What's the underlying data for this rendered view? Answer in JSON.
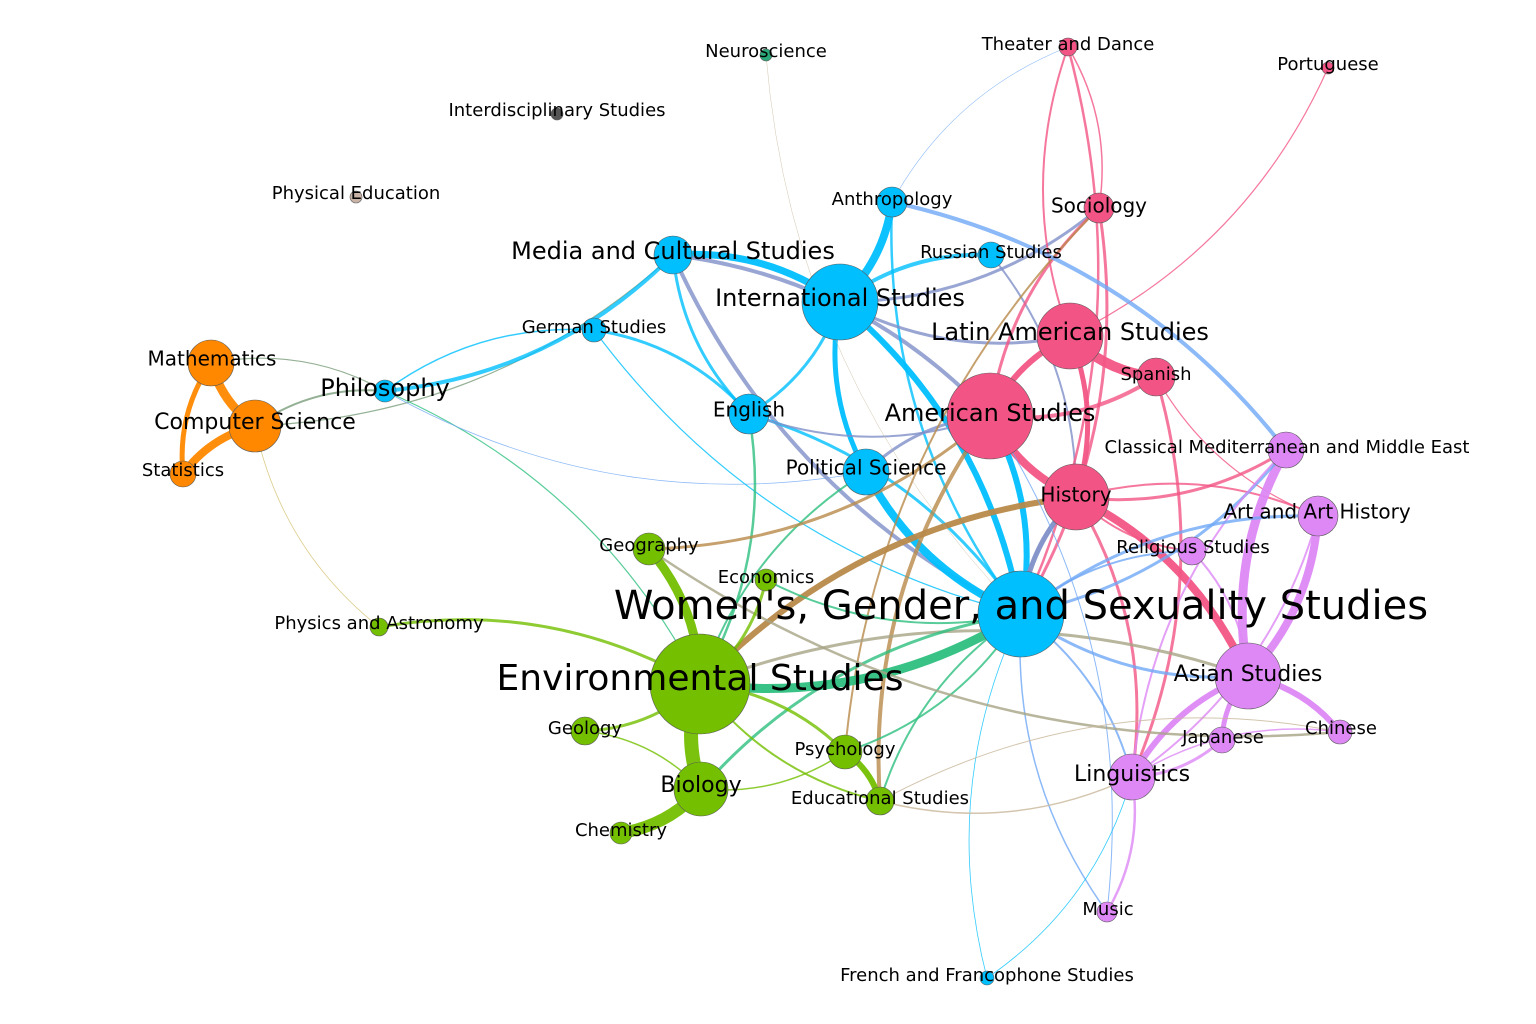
{
  "colors": {
    "blue": "#00bfff",
    "pink": "#f25585",
    "violet": "#dd88f5",
    "green": "#73bf00",
    "orange": "#ff8800",
    "teal": "#2aa87a",
    "gray": "#555555",
    "taupe": "#c9b3a6",
    "edge_steel": "#8090c8",
    "edge_cornflower": "#6fa8f5",
    "edge_bronze": "#b8894a",
    "edge_khaki": "#a8a486",
    "edge_sea": "#2dbf7e",
    "edge_sage": "#7a9e7a",
    "edge_mustard": "#d4c070",
    "edge_tan": "#c8b79a"
  },
  "nodes": [
    {
      "id": "wgss",
      "label": "Women's, Gender, and Sexuality Studies",
      "color": "blue"
    },
    {
      "id": "env",
      "label": "Environmental Studies",
      "color": "green"
    },
    {
      "id": "amst",
      "label": "American Studies",
      "color": "pink"
    },
    {
      "id": "intl",
      "label": "International Studies",
      "color": "blue"
    },
    {
      "id": "latam",
      "label": "Latin American Studies",
      "color": "pink"
    },
    {
      "id": "hist",
      "label": "History",
      "color": "pink"
    },
    {
      "id": "media",
      "label": "Media and Cultural Studies",
      "color": "blue"
    },
    {
      "id": "asian",
      "label": "Asian Studies",
      "color": "violet"
    },
    {
      "id": "polsci",
      "label": "Political Science",
      "color": "blue"
    },
    {
      "id": "english",
      "label": "English",
      "color": "blue"
    },
    {
      "id": "cs",
      "label": "Computer Science",
      "color": "orange"
    },
    {
      "id": "math",
      "label": "Mathematics",
      "color": "orange"
    },
    {
      "id": "stats",
      "label": "Statistics",
      "color": "orange"
    },
    {
      "id": "philo",
      "label": "Philosophy",
      "color": "blue"
    },
    {
      "id": "german",
      "label": "German Studies",
      "color": "blue"
    },
    {
      "id": "anthro",
      "label": "Anthropology",
      "color": "blue"
    },
    {
      "id": "russian",
      "label": "Russian Studies",
      "color": "blue"
    },
    {
      "id": "socio",
      "label": "Sociology",
      "color": "pink"
    },
    {
      "id": "theater",
      "label": "Theater and Dance",
      "color": "pink"
    },
    {
      "id": "port",
      "label": "Portuguese",
      "color": "pink"
    },
    {
      "id": "spanish",
      "label": "Spanish",
      "color": "pink"
    },
    {
      "id": "classical",
      "label": "Classical Mediterranean and Middle East",
      "color": "violet"
    },
    {
      "id": "arth",
      "label": "Art and Art History",
      "color": "violet"
    },
    {
      "id": "relig",
      "label": "Religious Studies",
      "color": "violet"
    },
    {
      "id": "ling",
      "label": "Linguistics",
      "color": "violet"
    },
    {
      "id": "japan",
      "label": "Japanese",
      "color": "violet"
    },
    {
      "id": "chinese",
      "label": "Chinese",
      "color": "violet"
    },
    {
      "id": "music",
      "label": "Music",
      "color": "violet"
    },
    {
      "id": "french",
      "label": "French and Francophone Studies",
      "color": "blue"
    },
    {
      "id": "geog",
      "label": "Geography",
      "color": "green"
    },
    {
      "id": "econ",
      "label": "Economics",
      "color": "green"
    },
    {
      "id": "physics",
      "label": "Physics and Astronomy",
      "color": "green"
    },
    {
      "id": "geology",
      "label": "Geology",
      "color": "green"
    },
    {
      "id": "bio",
      "label": "Biology",
      "color": "green"
    },
    {
      "id": "chem",
      "label": "Chemistry",
      "color": "green"
    },
    {
      "id": "psych",
      "label": "Psychology",
      "color": "green"
    },
    {
      "id": "edu",
      "label": "Educational Studies",
      "color": "green"
    },
    {
      "id": "neuro",
      "label": "Neuroscience",
      "color": "teal"
    },
    {
      "id": "interd",
      "label": "Interdisciplinary Studies",
      "color": "gray"
    },
    {
      "id": "pe",
      "label": "Physical Education",
      "color": "taupe"
    }
  ],
  "edges": [
    {
      "source": "math",
      "target": "cs",
      "weight": 9,
      "color": "orange"
    },
    {
      "source": "stats",
      "target": "cs",
      "weight": 8,
      "color": "orange"
    },
    {
      "source": "math",
      "target": "stats",
      "weight": 5,
      "color": "orange"
    },
    {
      "source": "cs",
      "target": "philo",
      "weight": 2,
      "color": "edge_sage"
    },
    {
      "source": "cs",
      "target": "media",
      "weight": 1.2,
      "color": "edge_sage"
    },
    {
      "source": "math",
      "target": "philo",
      "weight": 1.2,
      "color": "edge_sage"
    },
    {
      "source": "cs",
      "target": "physics",
      "weight": 0.8,
      "color": "edge_mustard"
    },
    {
      "source": "philo",
      "target": "german",
      "weight": 1.5,
      "color": "blue"
    },
    {
      "source": "philo",
      "target": "media",
      "weight": 4,
      "color": "blue"
    },
    {
      "source": "philo",
      "target": "env",
      "weight": 1.2,
      "color": "edge_sea"
    },
    {
      "source": "philo",
      "target": "polsci",
      "weight": 0.8,
      "color": "edge_cornflower"
    },
    {
      "source": "media",
      "target": "intl",
      "weight": 7,
      "color": "blue"
    },
    {
      "source": "media",
      "target": "english",
      "weight": 3,
      "color": "blue"
    },
    {
      "source": "media",
      "target": "amst",
      "weight": 4,
      "color": "edge_steel"
    },
    {
      "source": "media",
      "target": "wgss",
      "weight": 4,
      "color": "edge_steel"
    },
    {
      "source": "german",
      "target": "english",
      "weight": 3,
      "color": "blue"
    },
    {
      "source": "german",
      "target": "wgss",
      "weight": 1.2,
      "color": "blue"
    },
    {
      "source": "anthro",
      "target": "intl",
      "weight": 8,
      "color": "blue"
    },
    {
      "source": "anthro",
      "target": "wgss",
      "weight": 2.5,
      "color": "blue"
    },
    {
      "source": "anthro",
      "target": "theater",
      "weight": 0.6,
      "color": "edge_cornflower"
    },
    {
      "source": "russian",
      "target": "intl",
      "weight": 4,
      "color": "blue"
    },
    {
      "source": "russian",
      "target": "hist",
      "weight": 2,
      "color": "edge_steel"
    },
    {
      "source": "intl",
      "target": "polsci",
      "weight": 5,
      "color": "blue"
    },
    {
      "source": "intl",
      "target": "wgss",
      "weight": 6,
      "color": "blue"
    },
    {
      "source": "intl",
      "target": "latam",
      "weight": 3,
      "color": "edge_steel"
    },
    {
      "source": "intl",
      "target": "english",
      "weight": 3,
      "color": "blue"
    },
    {
      "source": "intl",
      "target": "socio",
      "weight": 3,
      "color": "edge_steel"
    },
    {
      "source": "english",
      "target": "wgss",
      "weight": 3,
      "color": "blue"
    },
    {
      "source": "english",
      "target": "amst",
      "weight": 2,
      "color": "edge_steel"
    },
    {
      "source": "english",
      "target": "env",
      "weight": 2.5,
      "color": "edge_sea"
    },
    {
      "source": "polsci",
      "target": "wgss",
      "weight": 8,
      "color": "blue"
    },
    {
      "source": "polsci",
      "target": "amst",
      "weight": 3,
      "color": "edge_steel"
    },
    {
      "source": "polsci",
      "target": "env",
      "weight": 2,
      "color": "edge_sea"
    },
    {
      "source": "amst",
      "target": "latam",
      "weight": 6,
      "color": "pink"
    },
    {
      "source": "amst",
      "target": "hist",
      "weight": 8,
      "color": "pink"
    },
    {
      "source": "amst",
      "target": "wgss",
      "weight": 6,
      "color": "blue"
    },
    {
      "source": "amst",
      "target": "spanish",
      "weight": 4,
      "color": "pink"
    },
    {
      "source": "amst",
      "target": "socio",
      "weight": 3,
      "color": "pink"
    },
    {
      "source": "amst",
      "target": "edu",
      "weight": 4,
      "color": "edge_bronze"
    },
    {
      "source": "amst",
      "target": "geog",
      "weight": 3,
      "color": "edge_bronze"
    },
    {
      "source": "latam",
      "target": "spanish",
      "weight": 10,
      "color": "pink"
    },
    {
      "source": "latam",
      "target": "hist",
      "weight": 5,
      "color": "pink"
    },
    {
      "source": "latam",
      "target": "port",
      "weight": 1.2,
      "color": "pink"
    },
    {
      "source": "latam",
      "target": "theater",
      "weight": 2,
      "color": "pink"
    },
    {
      "source": "socio",
      "target": "theater",
      "weight": 1.5,
      "color": "pink"
    },
    {
      "source": "socio",
      "target": "wgss",
      "weight": 3,
      "color": "pink"
    },
    {
      "source": "socio",
      "target": "psych",
      "weight": 2,
      "color": "edge_bronze"
    },
    {
      "source": "theater",
      "target": "wgss",
      "weight": 2.5,
      "color": "pink"
    },
    {
      "source": "hist",
      "target": "wgss",
      "weight": 5,
      "color": "edge_steel"
    },
    {
      "source": "hist",
      "target": "asian",
      "weight": 8,
      "color": "pink"
    },
    {
      "source": "hist",
      "target": "classical",
      "weight": 3,
      "color": "pink"
    },
    {
      "source": "hist",
      "target": "ling",
      "weight": 3,
      "color": "pink"
    },
    {
      "source": "hist",
      "target": "env",
      "weight": 6,
      "color": "edge_bronze"
    },
    {
      "source": "hist",
      "target": "arth",
      "weight": 2,
      "color": "pink"
    },
    {
      "source": "hist",
      "target": "relig",
      "weight": 2,
      "color": "pink"
    },
    {
      "source": "spanish",
      "target": "ling",
      "weight": 3,
      "color": "pink"
    },
    {
      "source": "spanish",
      "target": "arth",
      "weight": 1.2,
      "color": "pink"
    },
    {
      "source": "anthro",
      "target": "classical",
      "weight": 4,
      "color": "edge_cornflower"
    },
    {
      "source": "classical",
      "target": "asian",
      "weight": 9,
      "color": "violet"
    },
    {
      "source": "classical",
      "target": "wgss",
      "weight": 3,
      "color": "edge_cornflower"
    },
    {
      "source": "classical",
      "target": "ling",
      "weight": 2,
      "color": "violet"
    },
    {
      "source": "arth",
      "target": "asian",
      "weight": 8,
      "color": "violet"
    },
    {
      "source": "arth",
      "target": "wgss",
      "weight": 3,
      "color": "edge_cornflower"
    },
    {
      "source": "arth",
      "target": "ling",
      "weight": 2,
      "color": "violet"
    },
    {
      "source": "relig",
      "target": "wgss",
      "weight": 2,
      "color": "edge_cornflower"
    },
    {
      "source": "relig",
      "target": "asian",
      "weight": 2,
      "color": "violet"
    },
    {
      "source": "asian",
      "target": "ling",
      "weight": 6,
      "color": "violet"
    },
    {
      "source": "asian",
      "target": "chinese",
      "weight": 6,
      "color": "violet"
    },
    {
      "source": "asian",
      "target": "japan",
      "weight": 5,
      "color": "violet"
    },
    {
      "source": "asian",
      "target": "wgss",
      "weight": 3,
      "color": "edge_cornflower"
    },
    {
      "source": "asian",
      "target": "env",
      "weight": 3,
      "color": "edge_khaki"
    },
    {
      "source": "japan",
      "target": "ling",
      "weight": 3,
      "color": "violet"
    },
    {
      "source": "chinese",
      "target": "ling",
      "weight": 1.5,
      "color": "violet"
    },
    {
      "source": "ling",
      "target": "music",
      "weight": 2.5,
      "color": "violet"
    },
    {
      "source": "ling",
      "target": "wgss",
      "weight": 2,
      "color": "edge_cornflower"
    },
    {
      "source": "music",
      "target": "wgss",
      "weight": 1.5,
      "color": "edge_cornflower"
    },
    {
      "source": "music",
      "target": "amst",
      "weight": 1,
      "color": "edge_cornflower"
    },
    {
      "source": "french",
      "target": "wgss",
      "weight": 0.8,
      "color": "blue"
    },
    {
      "source": "french",
      "target": "ling",
      "weight": 0.8,
      "color": "blue"
    },
    {
      "source": "wgss",
      "target": "env",
      "weight": 9,
      "color": "edge_sea"
    },
    {
      "source": "wgss",
      "target": "edu",
      "weight": 2,
      "color": "edge_sea"
    },
    {
      "source": "wgss",
      "target": "psych",
      "weight": 2,
      "color": "edge_sea"
    },
    {
      "source": "wgss",
      "target": "bio",
      "weight": 3,
      "color": "edge_sea"
    },
    {
      "source": "geog",
      "target": "env",
      "weight": 9,
      "color": "green"
    },
    {
      "source": "geog",
      "target": "chinese",
      "weight": 2.5,
      "color": "edge_khaki"
    },
    {
      "source": "econ",
      "target": "env",
      "weight": 3,
      "color": "green"
    },
    {
      "source": "econ",
      "target": "wgss",
      "weight": 2,
      "color": "edge_sea"
    },
    {
      "source": "physics",
      "target": "env",
      "weight": 3,
      "color": "green"
    },
    {
      "source": "geology",
      "target": "env",
      "weight": 3,
      "color": "green"
    },
    {
      "source": "geology",
      "target": "bio",
      "weight": 1.5,
      "color": "green"
    },
    {
      "source": "env",
      "target": "bio",
      "weight": 14,
      "color": "green"
    },
    {
      "source": "env",
      "target": "psych",
      "weight": 3,
      "color": "green"
    },
    {
      "source": "env",
      "target": "edu",
      "weight": 2,
      "color": "green"
    },
    {
      "source": "bio",
      "target": "chem",
      "weight": 12,
      "color": "green"
    },
    {
      "source": "bio",
      "target": "psych",
      "weight": 1.5,
      "color": "green"
    },
    {
      "source": "psych",
      "target": "edu",
      "weight": 6,
      "color": "green"
    },
    {
      "source": "edu",
      "target": "ling",
      "weight": 1.5,
      "color": "edge_tan"
    },
    {
      "source": "edu",
      "target": "chinese",
      "weight": 1,
      "color": "edge_tan"
    },
    {
      "source": "neuro",
      "target": "wgss",
      "weight": 0.5,
      "color": "edge_tan"
    }
  ]
}
